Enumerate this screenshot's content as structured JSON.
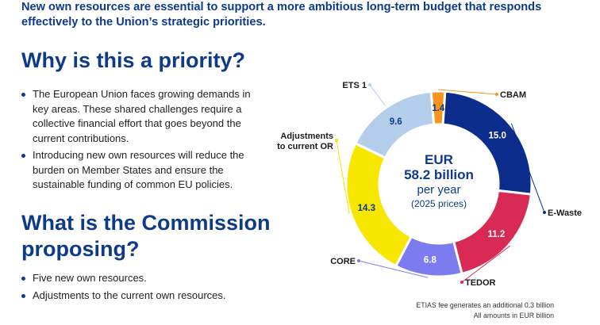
{
  "intro": "New own resources are essential to support a more ambitious long-term budget that responds effectively to the Union’s strategic priorities.",
  "section1": {
    "heading": "Why is this a priority?",
    "bullets": [
      "The European Union faces growing demands in key areas. These shared challenges require a collective financial effort that goes beyond the current contributions.",
      "Introducing new own resources will reduce the burden on Member States and ensure the sustainable funding of common EU policies."
    ]
  },
  "section2": {
    "heading": "What is the Commission proposing?",
    "bullets": [
      "Five new own resources.",
      "Adjustments to the current own resources."
    ]
  },
  "notes": [
    "ETIAS fee generates an additional 0.3 billion",
    "All amounts in EUR billion"
  ],
  "chart_data": {
    "type": "pie",
    "donut": true,
    "center_text": [
      "EUR",
      "58.2 billion",
      "per year",
      "(2025 prices)"
    ],
    "categories": [
      "ETS 1",
      "CBAM",
      "E-Waste",
      "TEDOR",
      "CORE",
      "Adjustments to current OR"
    ],
    "values": [
      9.6,
      1.4,
      15.0,
      11.2,
      6.8,
      14.3
    ],
    "value_labels": [
      "9.6",
      "1.4",
      "15.0",
      "11.2",
      "6.8",
      "14.3"
    ],
    "label_lines": [
      [
        "ETS 1"
      ],
      [
        "CBAM"
      ],
      [
        "E-Waste"
      ],
      [
        "TEDOR"
      ],
      [
        "CORE"
      ],
      [
        "Adjustments",
        "to current OR"
      ]
    ],
    "colors": [
      "#b3cdea",
      "#f7941d",
      "#0c2d8c",
      "#d92a56",
      "#7c7cf0",
      "#f7e600"
    ],
    "value_text_colors": [
      "#0e3a8a",
      "#0e3a8a",
      "#ffffff",
      "#ffffff",
      "#ffffff",
      "#0e3a8a"
    ]
  }
}
